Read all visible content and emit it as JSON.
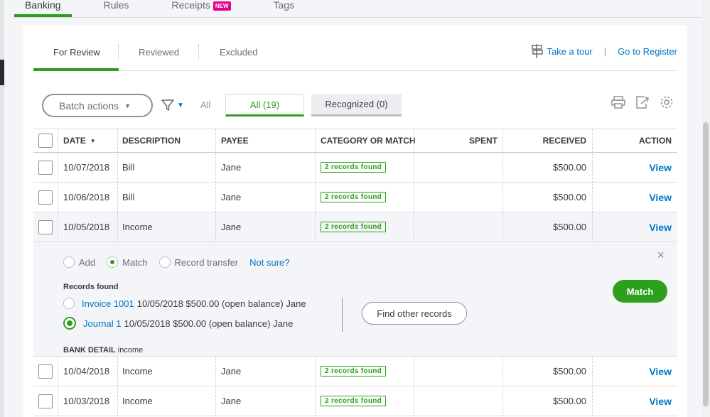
{
  "top_tabs": [
    {
      "label": "Banking",
      "active": true
    },
    {
      "label": "Rules",
      "active": false
    },
    {
      "label": "Receipts",
      "active": false,
      "badge": "NEW"
    },
    {
      "label": "Tags",
      "active": false
    }
  ],
  "sub_tabs": [
    {
      "label": "For Review",
      "active": true
    },
    {
      "label": "Reviewed",
      "active": false
    },
    {
      "label": "Excluded",
      "active": false
    }
  ],
  "links": {
    "tour": "Take a tour",
    "register": "Go to Register",
    "separator": "|"
  },
  "toolbar": {
    "batch_label": "Batch actions",
    "all_label": "All",
    "chip_all": "All (19)",
    "chip_recognized": "Recognized (0)"
  },
  "columns": {
    "date": "DATE",
    "description": "DESCRIPTION",
    "payee": "PAYEE",
    "category": "CATEGORY OR MATCH",
    "spent": "SPENT",
    "received": "RECEIVED",
    "action": "ACTION"
  },
  "rows": [
    {
      "date": "10/07/2018",
      "description": "Bill",
      "payee": "Jane",
      "category": "2 records found",
      "spent": "",
      "received": "$500.00",
      "action": "View"
    },
    {
      "date": "10/06/2018",
      "description": "Bill",
      "payee": "Jane",
      "category": "2 records found",
      "spent": "",
      "received": "$500.00",
      "action": "View"
    },
    {
      "date": "10/05/2018",
      "description": "Income",
      "payee": "Jane",
      "category": "2 records found",
      "spent": "",
      "received": "$500.00",
      "action": "View"
    },
    {
      "date": "10/04/2018",
      "description": "Income",
      "payee": "Jane",
      "category": "2 records found",
      "spent": "",
      "received": "$500.00",
      "action": "View"
    },
    {
      "date": "10/03/2018",
      "description": "Income",
      "payee": "Jane",
      "category": "2 records found",
      "spent": "",
      "received": "$500.00",
      "action": "View"
    }
  ],
  "expanded": {
    "mode_add": "Add",
    "mode_match": "Match",
    "mode_transfer": "Record transfer",
    "not_sure": "Not sure?",
    "records_title": "Records found",
    "records": [
      {
        "link": "Invoice 1001",
        "detail": "10/05/2018 $500.00 (open balance) Jane",
        "selected": false
      },
      {
        "link": "Journal 1",
        "detail": "10/05/2018 $500.00 (open balance) Jane",
        "selected": true
      }
    ],
    "find_button": "Find other records",
    "match_button": "Match",
    "bank_detail_label": "BANK DETAIL",
    "bank_detail_value": "income",
    "close": "×"
  },
  "colors": {
    "accent": "#2ca01c",
    "link": "#0077c5",
    "badge": "#e4008c"
  }
}
